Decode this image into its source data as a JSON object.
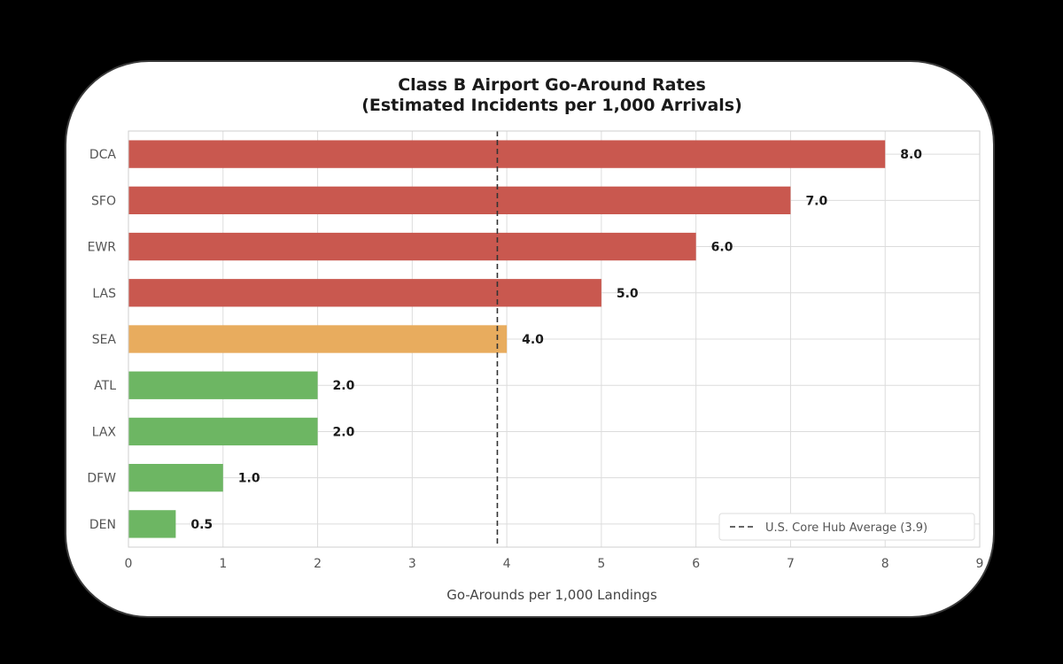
{
  "chart_data": {
    "type": "bar",
    "orientation": "horizontal",
    "title": "Class B Airport Go-Around Rates",
    "subtitle": "(Estimated Incidents per 1,000 Arrivals)",
    "xlabel": "Go-Arounds per 1,000 Landings",
    "ylabel": "",
    "categories": [
      "DCA",
      "SFO",
      "EWR",
      "LAS",
      "SEA",
      "ATL",
      "LAX",
      "DFW",
      "DEN"
    ],
    "values": [
      8.0,
      7.0,
      6.0,
      5.0,
      4.0,
      2.0,
      2.0,
      1.0,
      0.5
    ],
    "data_labels": [
      "8.0",
      "7.0",
      "6.0",
      "5.0",
      "4.0",
      "2.0",
      "2.0",
      "1.0",
      "0.5"
    ],
    "bar_colors": [
      "#c9584f",
      "#c9584f",
      "#c9584f",
      "#c9584f",
      "#e8ac5e",
      "#6db663",
      "#6db663",
      "#6db663",
      "#6db663"
    ],
    "xlim": [
      0,
      9
    ],
    "xticks": [
      "0",
      "1",
      "2",
      "3",
      "4",
      "5",
      "6",
      "7",
      "8",
      "9"
    ],
    "grid": true,
    "reference_line": {
      "value": 3.9,
      "style": "dashed",
      "color": "#333333"
    },
    "legend": {
      "position": "bottom-right",
      "entries": [
        "U.S. Core Hub Average (3.9)"
      ]
    }
  }
}
